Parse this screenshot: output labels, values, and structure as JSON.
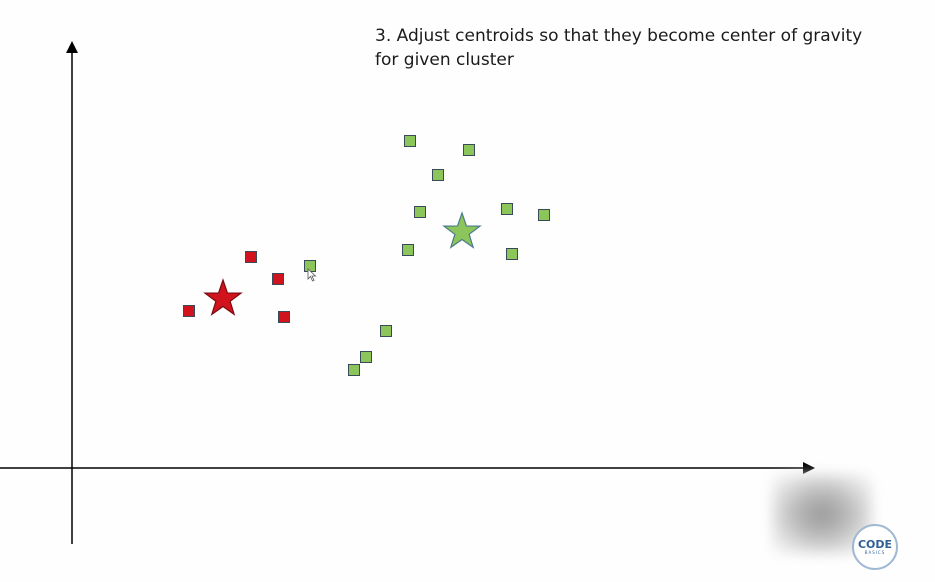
{
  "title": {
    "line1": "3. Adjust centroids so that they become center of gravity",
    "line2": "for given cluster"
  },
  "logo": {
    "word": "CODE",
    "sub": "BASICS"
  },
  "colors": {
    "red_cluster": "#d0131d",
    "green_cluster": "#8cc65a",
    "axis": "#000000",
    "square_border": "#3b4a5a"
  },
  "icons": {
    "centroid": "star-icon",
    "cursor": "mouse-pointer-icon"
  },
  "chart_data": {
    "type": "scatter",
    "title": "3. Adjust centroids so that they become center of gravity for given cluster",
    "xlabel": "",
    "ylabel": "",
    "grid": false,
    "series": [
      {
        "color": "#d0131d",
        "marker": "square",
        "points": [
          [
            189,
            311
          ],
          [
            251,
            257
          ],
          [
            278,
            279
          ],
          [
            284,
            317
          ]
        ]
      },
      {
        "color": "#8cc65a",
        "marker": "square",
        "points": [
          [
            410,
            141
          ],
          [
            469,
            150
          ],
          [
            438,
            175
          ],
          [
            420,
            212
          ],
          [
            507,
            209
          ],
          [
            544,
            215
          ],
          [
            408,
            250
          ],
          [
            512,
            254
          ],
          [
            310,
            266
          ],
          [
            386,
            331
          ],
          [
            366,
            357
          ],
          [
            354,
            370
          ]
        ]
      }
    ],
    "centroids": [
      {
        "color": "#d0131d",
        "point": [
          223,
          299
        ]
      },
      {
        "color": "#8cc65a",
        "point": [
          462,
          232
        ]
      }
    ]
  }
}
